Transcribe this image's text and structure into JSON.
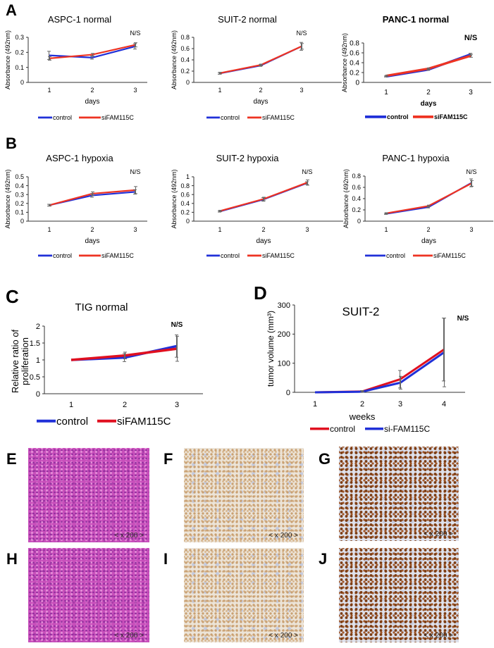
{
  "panel_labels": {
    "A": "A",
    "B": "B",
    "C": "C",
    "D": "D",
    "E": "E",
    "F": "F",
    "G": "G",
    "H": "H",
    "I": "I",
    "J": "J"
  },
  "colors": {
    "control_blue": "#2030d8",
    "si_red": "#ee3322",
    "d_red": "#e01020"
  },
  "chart_data": [
    {
      "type": "line",
      "title": "ASPC-1 normal",
      "xlabel": "days",
      "ylabel": "Absorbance (492nm)",
      "categories": [
        "1",
        "2",
        "3"
      ],
      "ylim": [
        0,
        0.3
      ],
      "yticks": [
        "0",
        "0.1",
        "0.2",
        "0.3"
      ],
      "annotation": "N/S",
      "series": [
        {
          "name": "control",
          "color": "#2030d8",
          "values": [
            0.18,
            0.165,
            0.24
          ],
          "errors": [
            0.027,
            0.01,
            0.018
          ]
        },
        {
          "name": "siFAM115C",
          "color": "#ee3322",
          "values": [
            0.16,
            0.185,
            0.25
          ],
          "errors": [
            0.012,
            0.008,
            0.014
          ]
        }
      ]
    },
    {
      "type": "line",
      "title": "SUIT-2 normal",
      "xlabel": "days",
      "ylabel": "Absorbance (492nm)",
      "categories": [
        "1",
        "2",
        "3"
      ],
      "ylim": [
        0,
        0.8
      ],
      "yticks": [
        "0",
        "0.2",
        "0.4",
        "0.6",
        "0.8"
      ],
      "annotation": "N/S",
      "series": [
        {
          "name": "control",
          "color": "#2030d8",
          "values": [
            0.16,
            0.3,
            0.64
          ],
          "errors": [
            0.015,
            0.015,
            0.07
          ]
        },
        {
          "name": "siFAM115C",
          "color": "#ee3322",
          "values": [
            0.165,
            0.31,
            0.64
          ],
          "errors": [
            0.015,
            0.015,
            0.05
          ]
        }
      ]
    },
    {
      "type": "line",
      "title": "PANC-1 normal",
      "xlabel": "days",
      "ylabel": "Absorbance (492nm)",
      "categories": [
        "1",
        "2",
        "3"
      ],
      "ylim": [
        0,
        0.8
      ],
      "yticks": [
        "0",
        "0.2",
        "0.4",
        "0.6",
        "0.8"
      ],
      "annotation": "N/S",
      "series": [
        {
          "name": "control",
          "color": "#2030d8",
          "values": [
            0.12,
            0.26,
            0.57
          ],
          "errors": [
            0.01,
            0.015,
            0.02
          ]
        },
        {
          "name": "siFAM115C",
          "color": "#ee3322",
          "values": [
            0.135,
            0.28,
            0.54
          ],
          "errors": [
            0.01,
            0.015,
            0.03
          ]
        }
      ]
    },
    {
      "type": "line",
      "title": "ASPC-1 hypoxia",
      "xlabel": "days",
      "ylabel": "Absorbance (492nm)",
      "categories": [
        "1",
        "2",
        "3"
      ],
      "ylim": [
        0,
        0.5
      ],
      "yticks": [
        "0",
        "0.1",
        "0.2",
        "0.3",
        "0.4",
        "0.5"
      ],
      "annotation": "N/S",
      "series": [
        {
          "name": "control",
          "color": "#2030d8",
          "values": [
            0.18,
            0.29,
            0.33
          ],
          "errors": [
            0.01,
            0.02,
            0.025
          ]
        },
        {
          "name": "siFAM115C",
          "color": "#ee3322",
          "values": [
            0.18,
            0.31,
            0.35
          ],
          "errors": [
            0.01,
            0.02,
            0.04
          ]
        }
      ]
    },
    {
      "type": "line",
      "title": "SUIT-2 hypoxia",
      "xlabel": "days",
      "ylabel": "Absorbance (492nm)",
      "categories": [
        "1",
        "2",
        "3"
      ],
      "ylim": [
        0,
        1
      ],
      "yticks": [
        "0",
        "0.2",
        "0.4",
        "0.6",
        "0.8",
        "1"
      ],
      "annotation": "N/S",
      "series": [
        {
          "name": "control",
          "color": "#2030d8",
          "values": [
            0.22,
            0.49,
            0.86
          ],
          "errors": [
            0.015,
            0.04,
            0.03
          ]
        },
        {
          "name": "siFAM115C",
          "color": "#ee3322",
          "values": [
            0.23,
            0.5,
            0.87
          ],
          "errors": [
            0.015,
            0.04,
            0.06
          ]
        }
      ]
    },
    {
      "type": "line",
      "title": "PANC-1 hypoxia",
      "xlabel": "days",
      "ylabel": "Absorbance (492nm)",
      "categories": [
        "1",
        "2",
        "3"
      ],
      "ylim": [
        0,
        0.8
      ],
      "yticks": [
        "0",
        "0.2",
        "0.4",
        "0.6",
        "0.8"
      ],
      "annotation": "N/S",
      "series": [
        {
          "name": "control",
          "color": "#2030d8",
          "values": [
            0.13,
            0.25,
            0.68
          ],
          "errors": [
            0.01,
            0.015,
            0.07
          ]
        },
        {
          "name": "siFAM115C",
          "color": "#ee3322",
          "values": [
            0.14,
            0.27,
            0.67
          ],
          "errors": [
            0.01,
            0.015,
            0.05
          ]
        }
      ]
    },
    {
      "type": "line",
      "title": "TIG normal",
      "xlabel": "",
      "ylabel": "Relative ratio of proliferation",
      "categories": [
        "1",
        "2",
        "3"
      ],
      "ylim": [
        0,
        2
      ],
      "yticks": [
        "0",
        "0.5",
        "1",
        "1.5",
        "2"
      ],
      "annotation": "N/S",
      "series": [
        {
          "name": "control",
          "color": "#2030d8",
          "values": [
            1.0,
            1.07,
            1.41
          ],
          "errors": [
            0,
            0.12,
            0.33
          ]
        },
        {
          "name": "siFAM115C",
          "color": "#e01020",
          "values": [
            1.0,
            1.13,
            1.33
          ],
          "errors": [
            0,
            0.1,
            0.37
          ]
        }
      ]
    },
    {
      "type": "line",
      "title": "SUIT-2",
      "xlabel": "weeks",
      "ylabel": "tumor volume (mm³)",
      "categories": [
        "1",
        "2",
        "3",
        "4"
      ],
      "ylim": [
        0,
        300
      ],
      "yticks": [
        "0",
        "100",
        "200",
        "300"
      ],
      "annotation": "N/S",
      "series": [
        {
          "name": "control",
          "color": "#e01020",
          "values": [
            0,
            3,
            45,
            147
          ],
          "errors": [
            0,
            3,
            30,
            108
          ]
        },
        {
          "name": "si-FAM115C",
          "color": "#2030d8",
          "values": [
            0,
            2,
            33,
            137
          ],
          "errors": [
            0,
            2,
            22,
            118
          ]
        }
      ]
    }
  ],
  "micrographs": [
    {
      "panel": "E",
      "magnification": "< x 200 >",
      "stain": "H&E"
    },
    {
      "panel": "F",
      "magnification": "< x 200 >",
      "stain": "IHC weak"
    },
    {
      "panel": "G",
      "magnification": "< x 200 >",
      "stain": "IHC strong"
    },
    {
      "panel": "H",
      "magnification": "< x 200 >",
      "stain": "H&E"
    },
    {
      "panel": "I",
      "magnification": "< x 200 >",
      "stain": "IHC weak"
    },
    {
      "panel": "J",
      "magnification": "< x 200 >",
      "stain": "IHC strong"
    }
  ]
}
